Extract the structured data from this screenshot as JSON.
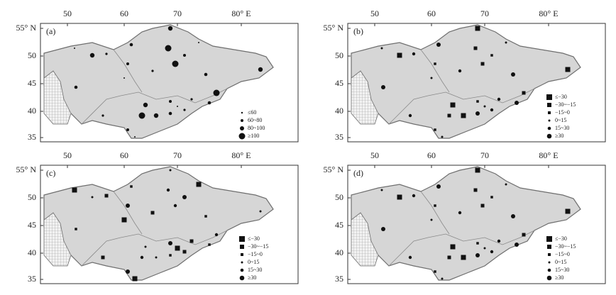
{
  "lon_ticks": [
    "50",
    "60",
    "70",
    "80° E"
  ],
  "lat_ticks": [
    "55° N",
    "50",
    "45",
    "40",
    "35"
  ],
  "panels": [
    {
      "label": "(a)",
      "legend": [
        "≤60",
        "60~80",
        "80~100",
        "≥100"
      ]
    },
    {
      "label": "(b)",
      "legend": [
        "≤−30",
        "−30~−15",
        "−15~0",
        "0~15",
        "15~30",
        "≥30"
      ]
    },
    {
      "label": "(c)",
      "legend": [
        "≤−30",
        "−30~−15",
        "−15~0",
        "0~15",
        "15~30",
        "≥30"
      ]
    },
    {
      "label": "(d)",
      "legend": [
        "≤−30",
        "−30~−15",
        "−15~0",
        "0~15",
        "15~30",
        "≥30"
      ]
    }
  ]
}
